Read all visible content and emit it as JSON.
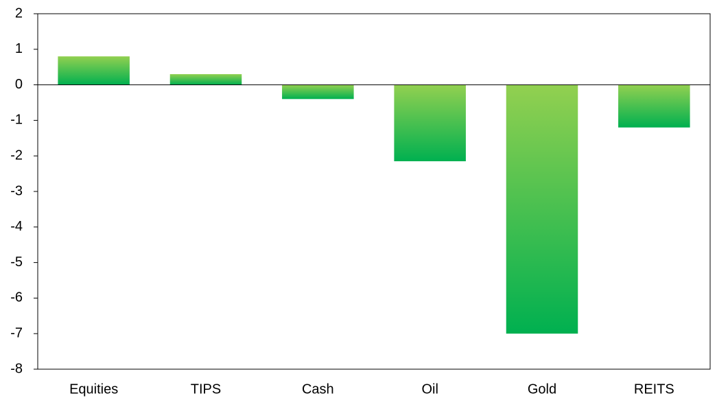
{
  "chart_data": {
    "type": "bar",
    "categories": [
      "Equities",
      "TIPS",
      "Cash",
      "Oil",
      "Gold",
      "REITS"
    ],
    "values": [
      0.8,
      0.3,
      -0.4,
      -2.15,
      -7.0,
      -1.2
    ],
    "color": "#00b050",
    "gradient_color": "#92d050",
    "ylim": [
      -8,
      2
    ],
    "yticks": [
      -8,
      -7,
      -6,
      -5,
      -4,
      -3,
      -2,
      -1,
      0,
      1,
      2
    ]
  }
}
